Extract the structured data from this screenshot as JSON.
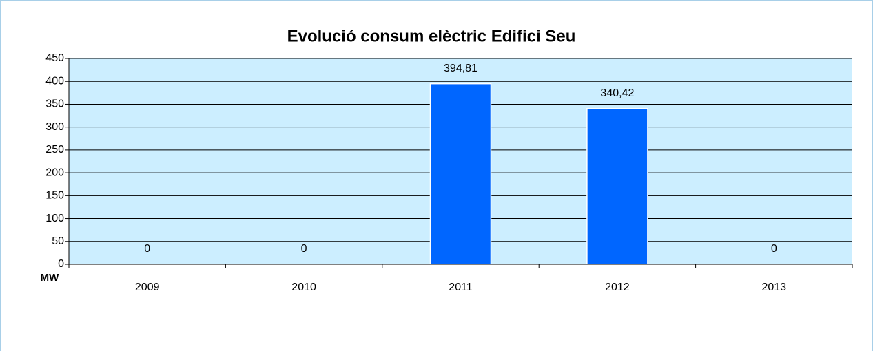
{
  "chart_data": {
    "type": "bar",
    "title": "Evolució consum elèctric Edifici Seu",
    "y_label": "MW",
    "categories": [
      "2009",
      "2010",
      "2011",
      "2012",
      "2013"
    ],
    "values": [
      0,
      0,
      394.81,
      340.42,
      0
    ],
    "value_labels": [
      "0",
      "0",
      "394,81",
      "340,42",
      "0"
    ],
    "color": "#0066ff",
    "ylim": [
      0,
      450
    ],
    "yticks": [
      0,
      50,
      100,
      150,
      200,
      250,
      300,
      350,
      400,
      450
    ],
    "grid": true
  }
}
